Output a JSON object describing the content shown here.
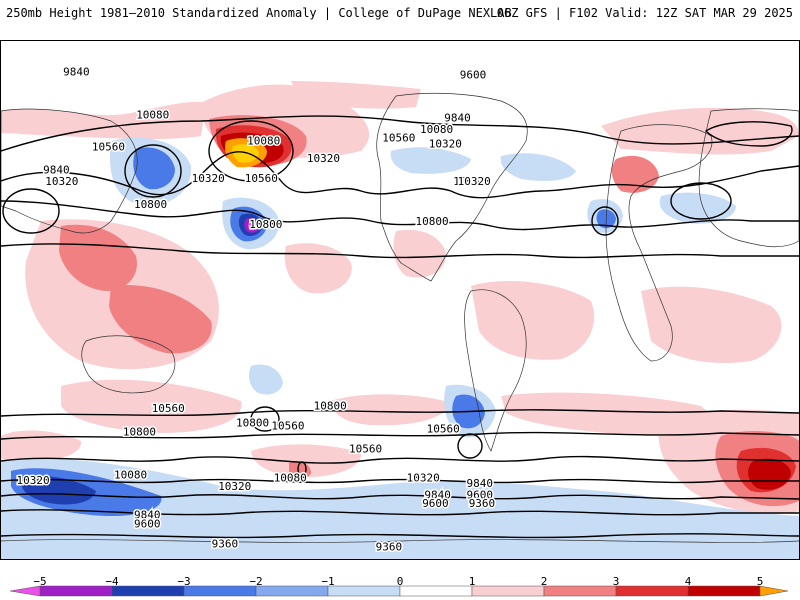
{
  "header": {
    "title_left": "250mb Height 1981–2010 Standardized Anomaly | College of DuPage NEXLAB",
    "title_right": "06Z GFS | F102 Valid: 12Z SAT MAR 29 2025"
  },
  "map": {
    "contour_labels": [
      {
        "text": "9840",
        "lon": 28,
        "lat": 78
      },
      {
        "text": "9600",
        "lon": 207,
        "lat": 77
      },
      {
        "text": "10080",
        "lon": 61,
        "lat": 63
      },
      {
        "text": "9840",
        "lon": 200,
        "lat": 62
      },
      {
        "text": "10560",
        "lon": 41,
        "lat": 52
      },
      {
        "text": "10080",
        "lon": 189,
        "lat": 58
      },
      {
        "text": "10080",
        "lon": 111,
        "lat": 54
      },
      {
        "text": "10560",
        "lon": 172,
        "lat": 55
      },
      {
        "text": "10320",
        "lon": -167,
        "lat": 53
      },
      {
        "text": "9840",
        "lon": 19,
        "lat": 44
      },
      {
        "text": "10320",
        "lon": 20,
        "lat": 40
      },
      {
        "text": "10560",
        "lon": -156,
        "lat": 40
      },
      {
        "text": "10800",
        "lon": 60,
        "lat": 32
      },
      {
        "text": "10320",
        "lon": 86,
        "lat": 41
      },
      {
        "text": "10560",
        "lon": 110,
        "lat": 41
      },
      {
        "text": "10320",
        "lon": 138,
        "lat": 48
      },
      {
        "text": "10320",
        "lon": 206,
        "lat": 40
      },
      {
        "text": "10800",
        "lon": 112,
        "lat": 25
      },
      {
        "text": "10800",
        "lon": 187,
        "lat": 26
      },
      {
        "text": "10800",
        "lon": 141,
        "lat": -38
      },
      {
        "text": "10800",
        "lon": 106,
        "lat": -44
      },
      {
        "text": "10560",
        "lon": -168,
        "lat": -46
      },
      {
        "text": "10560",
        "lon": 68,
        "lat": -39
      },
      {
        "text": "10560",
        "lon": 122,
        "lat": -45
      },
      {
        "text": "10800",
        "lon": 55,
        "lat": -47
      },
      {
        "text": "10560",
        "lon": 157,
        "lat": -53
      },
      {
        "text": "10320",
        "lon": 7,
        "lat": -64
      },
      {
        "text": "10080",
        "lon": 51,
        "lat": -62
      },
      {
        "text": "10320",
        "lon": 98,
        "lat": -66
      },
      {
        "text": "10080",
        "lon": 123,
        "lat": -63
      },
      {
        "text": "10320",
        "lon": 183,
        "lat": -63
      },
      {
        "text": "9840",
        "lon": -150,
        "lat": -65
      },
      {
        "text": "9840",
        "lon": 191,
        "lat": -69
      },
      {
        "text": "9600",
        "lon": -150,
        "lat": -69
      },
      {
        "text": "9600",
        "lon": 190,
        "lat": -72
      },
      {
        "text": "9360",
        "lon": -149,
        "lat": -72
      },
      {
        "text": "9840",
        "lon": 60,
        "lat": -76
      },
      {
        "text": "9600",
        "lon": 60,
        "lat": -79
      },
      {
        "text": "9360",
        "lon": 95,
        "lat": -86
      },
      {
        "text": "9360",
        "lon": 169,
        "lat": -87
      }
    ],
    "anomaly_features": [
      {
        "type": "positive",
        "value": 5,
        "lon": 42,
        "lat": 56
      },
      {
        "type": "positive",
        "value": 3,
        "lon": 210,
        "lat": -71
      },
      {
        "type": "negative",
        "value": -5,
        "lon": 54,
        "lat": 34
      },
      {
        "type": "negative",
        "value": -3,
        "lon": -156,
        "lat": -74
      },
      {
        "type": "negative",
        "value": -3,
        "lon": 159,
        "lat": 32
      },
      {
        "type": "positive",
        "value": 2,
        "lon": 153,
        "lat": 49
      },
      {
        "type": "positive",
        "value": 2,
        "lon": -109,
        "lat": 15
      },
      {
        "type": "negative",
        "value": -2,
        "lon": 122,
        "lat": -52
      }
    ]
  },
  "colorbar": {
    "ticks": [
      "−5",
      "−4",
      "−3",
      "−2",
      "−1",
      "0",
      "1",
      "2",
      "3",
      "4",
      "5"
    ],
    "colors": [
      "#e850e8",
      "#a020c8",
      "#1f3fb0",
      "#4a7ae8",
      "#c7dcf5",
      "#ffffff",
      "#f9cfd2",
      "#f08082",
      "#e03030",
      "#c00000",
      "#ffa000"
    ],
    "range": [
      -5,
      5
    ]
  }
}
